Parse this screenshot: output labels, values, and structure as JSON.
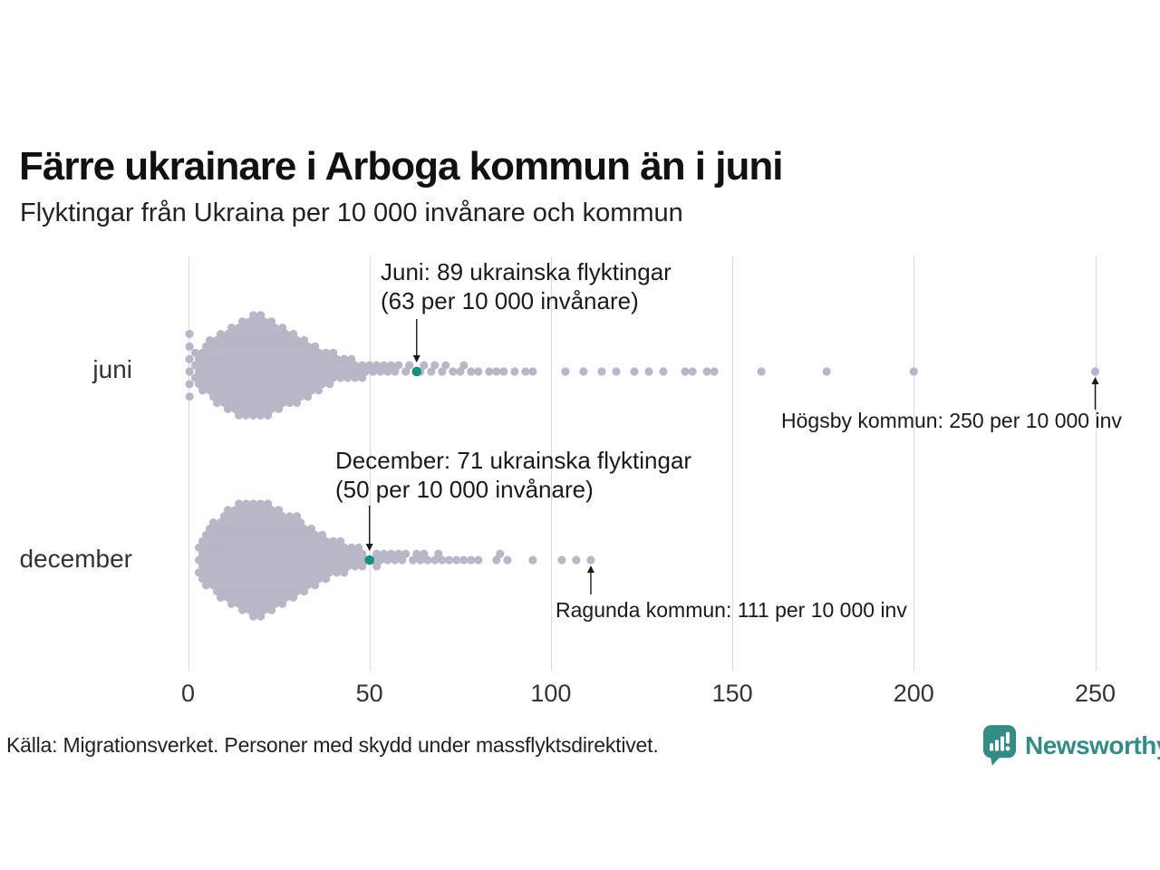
{
  "header": {
    "title": "Färre ukrainare i Arboga kommun än i juni",
    "subtitle": "Flyktingar från Ukraina per 10 000 invånare och kommun"
  },
  "source": "Källa: Migrationsverket. Personer med skydd under massflyktsdirektivet.",
  "brand": {
    "name": "Newsworthy",
    "color": "#348c85",
    "icon": "newsworthy-speech-bubble-barchart-icon"
  },
  "colors": {
    "dot": "#b8b7c8",
    "highlight": "#14927f",
    "gridline": "#d8d8d8",
    "arrow": "#1a1a1a",
    "text": "#1a1a1a"
  },
  "chart_data": {
    "type": "scatter",
    "variant": "beeswarm",
    "unit": "flyktingar per 10 000 invånare",
    "rows": [
      "juni",
      "december"
    ],
    "x_axis": {
      "ticks": [
        0,
        50,
        100,
        150,
        200,
        250
      ],
      "range": [
        0,
        262
      ],
      "label": "",
      "grid": true
    },
    "series": [
      {
        "name": "juni",
        "highlight": {
          "value": 63,
          "label_lines": [
            "Juni: 89 ukrainska flyktingar",
            "(63 per 10 000 invånare)"
          ]
        },
        "outlier_annotation": {
          "value": 250,
          "text": "Högsby kommun: 250 per 10 000 inv"
        },
        "points_histogram": [
          [
            0.4,
            6
          ],
          [
            2,
            3
          ],
          [
            3,
            3
          ],
          [
            4,
            4
          ],
          [
            5,
            4
          ],
          [
            6,
            5
          ],
          [
            7,
            5
          ],
          [
            8,
            6
          ],
          [
            9,
            6
          ],
          [
            10,
            6
          ],
          [
            11,
            7
          ],
          [
            12,
            7
          ],
          [
            13,
            7
          ],
          [
            14,
            8
          ],
          [
            15,
            8
          ],
          [
            16,
            8
          ],
          [
            17,
            8
          ],
          [
            18,
            9
          ],
          [
            19,
            8
          ],
          [
            20,
            9
          ],
          [
            21,
            8
          ],
          [
            22,
            8
          ],
          [
            23,
            8
          ],
          [
            24,
            7
          ],
          [
            25,
            7
          ],
          [
            26,
            7
          ],
          [
            27,
            6
          ],
          [
            28,
            6
          ],
          [
            29,
            6
          ],
          [
            30,
            6
          ],
          [
            31,
            5
          ],
          [
            32,
            5
          ],
          [
            33,
            5
          ],
          [
            34,
            4
          ],
          [
            35,
            4
          ],
          [
            36,
            4
          ],
          [
            37,
            3
          ],
          [
            38,
            3
          ],
          [
            39,
            3
          ],
          [
            40,
            3
          ],
          [
            41,
            2
          ],
          [
            42,
            2
          ],
          [
            43,
            2
          ],
          [
            44,
            2
          ],
          [
            45,
            2
          ],
          [
            46,
            2
          ],
          [
            47,
            1
          ],
          [
            48,
            2
          ],
          [
            49,
            1
          ],
          [
            50,
            1
          ],
          [
            51,
            1
          ],
          [
            52,
            1
          ],
          [
            53,
            1
          ],
          [
            54,
            1
          ],
          [
            55,
            1
          ],
          [
            56,
            1
          ],
          [
            57,
            1
          ],
          [
            58,
            1
          ],
          [
            60,
            1
          ],
          [
            61,
            1
          ],
          [
            64,
            1
          ],
          [
            65,
            1
          ],
          [
            67,
            1
          ],
          [
            68,
            1
          ],
          [
            70,
            1
          ],
          [
            71,
            1
          ],
          [
            73,
            1
          ],
          [
            75,
            1
          ],
          [
            76,
            1
          ],
          [
            78,
            1
          ],
          [
            80,
            1
          ],
          [
            83,
            1
          ],
          [
            85,
            1
          ],
          [
            87,
            1
          ],
          [
            90,
            1
          ],
          [
            93,
            1
          ],
          [
            95,
            1
          ],
          [
            104,
            1
          ],
          [
            109,
            1
          ],
          [
            114,
            1
          ],
          [
            118,
            1
          ],
          [
            123,
            1
          ],
          [
            127,
            1
          ],
          [
            131,
            1
          ],
          [
            137,
            1
          ],
          [
            139,
            1
          ],
          [
            143,
            1
          ],
          [
            145,
            1
          ],
          [
            158,
            1
          ],
          [
            176,
            1
          ],
          [
            200,
            1
          ],
          [
            250,
            1
          ]
        ]
      },
      {
        "name": "december",
        "highlight": {
          "value": 50,
          "label_lines": [
            "December: 71 ukrainska flyktingar",
            "(50 per 10 000 invånare)"
          ]
        },
        "outlier_annotation": {
          "value": 111,
          "text": "Ragunda kommun: 111 per 10 000 inv"
        },
        "points_histogram": [
          [
            3,
            3
          ],
          [
            4,
            4
          ],
          [
            5,
            5
          ],
          [
            6,
            5
          ],
          [
            7,
            6
          ],
          [
            8,
            6
          ],
          [
            9,
            7
          ],
          [
            10,
            7
          ],
          [
            11,
            8
          ],
          [
            12,
            8
          ],
          [
            13,
            8
          ],
          [
            14,
            9
          ],
          [
            15,
            9
          ],
          [
            16,
            9
          ],
          [
            17,
            9
          ],
          [
            18,
            10
          ],
          [
            19,
            9
          ],
          [
            20,
            10
          ],
          [
            21,
            9
          ],
          [
            22,
            9
          ],
          [
            23,
            9
          ],
          [
            24,
            8
          ],
          [
            25,
            8
          ],
          [
            26,
            8
          ],
          [
            27,
            7
          ],
          [
            28,
            7
          ],
          [
            29,
            7
          ],
          [
            30,
            7
          ],
          [
            31,
            6
          ],
          [
            32,
            6
          ],
          [
            33,
            5
          ],
          [
            34,
            5
          ],
          [
            35,
            5
          ],
          [
            36,
            4
          ],
          [
            37,
            4
          ],
          [
            38,
            4
          ],
          [
            39,
            3
          ],
          [
            40,
            3
          ],
          [
            41,
            3
          ],
          [
            42,
            3
          ],
          [
            43,
            3
          ],
          [
            44,
            2
          ],
          [
            45,
            2
          ],
          [
            46,
            2
          ],
          [
            47,
            2
          ],
          [
            48,
            2
          ],
          [
            49,
            1
          ],
          [
            51,
            1
          ],
          [
            52,
            2
          ],
          [
            53,
            1
          ],
          [
            54,
            1
          ],
          [
            55,
            1
          ],
          [
            56,
            1
          ],
          [
            57,
            1
          ],
          [
            58,
            1
          ],
          [
            59,
            1
          ],
          [
            60,
            1
          ],
          [
            62,
            1
          ],
          [
            63,
            1
          ],
          [
            64,
            1
          ],
          [
            65,
            1
          ],
          [
            66,
            1
          ],
          [
            68,
            1
          ],
          [
            69,
            1
          ],
          [
            70,
            1
          ],
          [
            72,
            1
          ],
          [
            74,
            1
          ],
          [
            76,
            1
          ],
          [
            78,
            1
          ],
          [
            80,
            1
          ],
          [
            85,
            1
          ],
          [
            86,
            1
          ],
          [
            88,
            1
          ],
          [
            95,
            1
          ],
          [
            103,
            1
          ],
          [
            107,
            1
          ],
          [
            111,
            1
          ]
        ]
      }
    ]
  }
}
